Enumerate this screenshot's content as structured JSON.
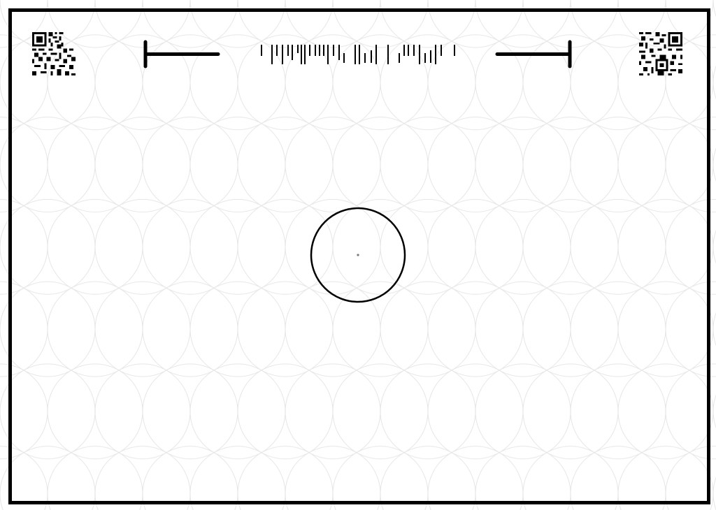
{
  "page": {
    "kind": "printable scan marker sheet",
    "colors": {
      "background": "#ffffff",
      "ink": "#000000",
      "pattern_line": "#e6e6e6",
      "center_dot": "#777777"
    },
    "pattern": "flower-of-life"
  },
  "markers": {
    "top_left": {
      "icon": "qr-code-icon"
    },
    "top_right": {
      "icon": "qr-code-icon"
    },
    "left_bracket": {
      "icon": "left-bracket-bar-icon"
    },
    "right_bracket": {
      "icon": "right-bracket-bar-icon"
    },
    "barcode": {
      "icon": "barcode-icon"
    },
    "center": {
      "icon": "target-circle-icon"
    }
  }
}
